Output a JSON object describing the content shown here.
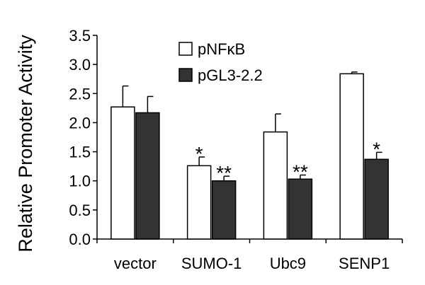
{
  "chart_data": {
    "type": "bar",
    "title": "",
    "xlabel": "",
    "ylabel": "Relative Promoter  Activity",
    "ylim": [
      0,
      3.5
    ],
    "yticks": [
      "0.0",
      "0.5",
      "1.0",
      "1.5",
      "2.0",
      "2.5",
      "3.0",
      "3.5"
    ],
    "categories": [
      "vector",
      "SUMO-1",
      "Ubc9",
      "SENP1"
    ],
    "series": [
      {
        "name": "pNFκB",
        "color": "#ffffff",
        "values": [
          2.27,
          1.26,
          1.84,
          2.84
        ],
        "errors": [
          0.36,
          0.15,
          0.31,
          0.03
        ],
        "significance": [
          "",
          "*",
          "",
          ""
        ]
      },
      {
        "name": "pGL3-2.2",
        "color": "#333333",
        "values": [
          2.17,
          1.0,
          1.03,
          1.37
        ],
        "errors": [
          0.28,
          0.08,
          0.07,
          0.12
        ],
        "significance": [
          "",
          "**",
          "**",
          "*"
        ]
      }
    ],
    "legend_position": "top-center",
    "grid": false
  }
}
